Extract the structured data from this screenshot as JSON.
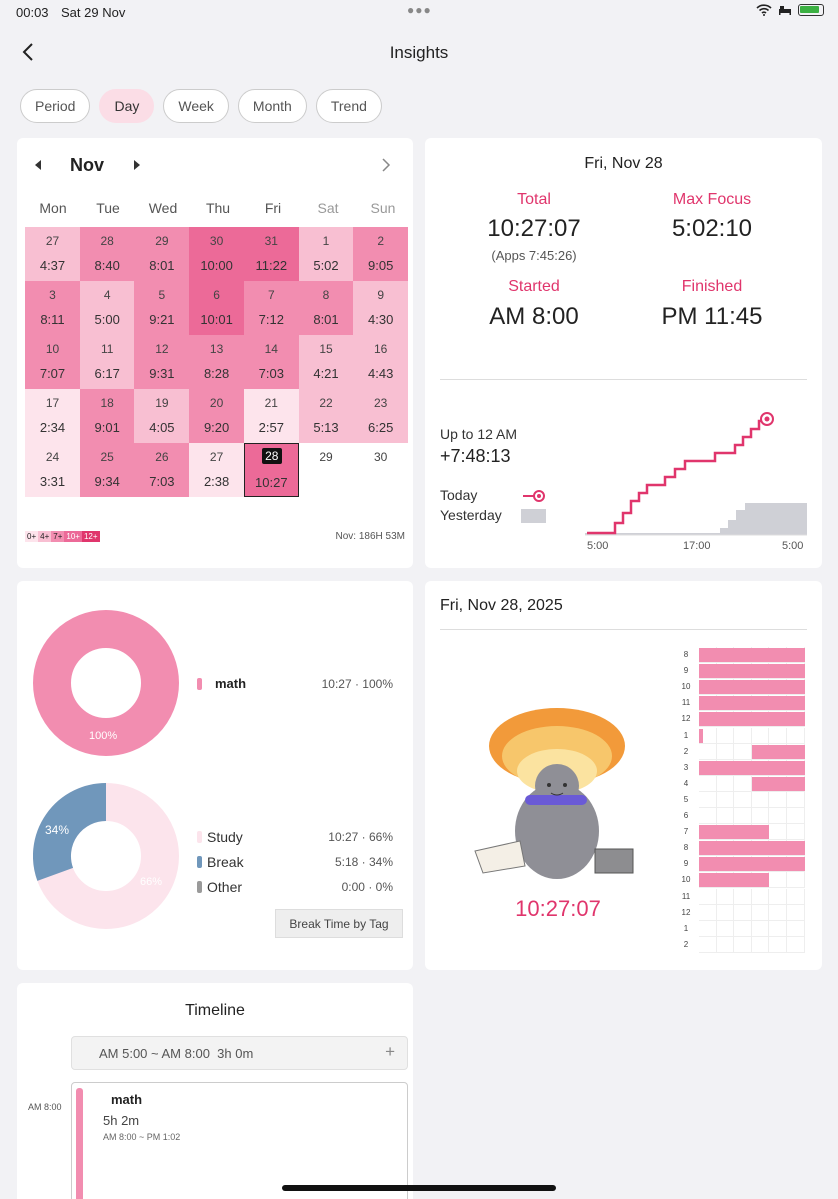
{
  "status": {
    "time": "00:03",
    "date": "Sat 29 Nov"
  },
  "header": {
    "title": "Insights"
  },
  "tabs": [
    {
      "label": "Period",
      "active": false
    },
    {
      "label": "Day",
      "active": true
    },
    {
      "label": "Week",
      "active": false
    },
    {
      "label": "Month",
      "active": false
    },
    {
      "label": "Trend",
      "active": false
    }
  ],
  "calendar": {
    "month": "Nov",
    "weekdays": [
      "Mon",
      "Tue",
      "Wed",
      "Thu",
      "Fri",
      "Sat",
      "Sun"
    ],
    "rows": [
      [
        {
          "d": "27",
          "v": "4:37",
          "l": 1
        },
        {
          "d": "28",
          "v": "8:40",
          "l": 2
        },
        {
          "d": "29",
          "v": "8:01",
          "l": 2
        },
        {
          "d": "30",
          "v": "10:00",
          "l": 3
        },
        {
          "d": "31",
          "v": "11:22",
          "l": 3
        },
        {
          "d": "1",
          "v": "5:02",
          "l": 1
        },
        {
          "d": "2",
          "v": "9:05",
          "l": 2
        }
      ],
      [
        {
          "d": "3",
          "v": "8:11",
          "l": 2
        },
        {
          "d": "4",
          "v": "5:00",
          "l": 1
        },
        {
          "d": "5",
          "v": "9:21",
          "l": 2
        },
        {
          "d": "6",
          "v": "10:01",
          "l": 3
        },
        {
          "d": "7",
          "v": "7:12",
          "l": 2
        },
        {
          "d": "8",
          "v": "8:01",
          "l": 2
        },
        {
          "d": "9",
          "v": "4:30",
          "l": 1
        }
      ],
      [
        {
          "d": "10",
          "v": "7:07",
          "l": 2
        },
        {
          "d": "11",
          "v": "6:17",
          "l": 1
        },
        {
          "d": "12",
          "v": "9:31",
          "l": 2
        },
        {
          "d": "13",
          "v": "8:28",
          "l": 2
        },
        {
          "d": "14",
          "v": "7:03",
          "l": 2
        },
        {
          "d": "15",
          "v": "4:21",
          "l": 1
        },
        {
          "d": "16",
          "v": "4:43",
          "l": 1
        }
      ],
      [
        {
          "d": "17",
          "v": "2:34",
          "l": 0
        },
        {
          "d": "18",
          "v": "9:01",
          "l": 2
        },
        {
          "d": "19",
          "v": "4:05",
          "l": 1
        },
        {
          "d": "20",
          "v": "9:20",
          "l": 2
        },
        {
          "d": "21",
          "v": "2:57",
          "l": 0
        },
        {
          "d": "22",
          "v": "5:13",
          "l": 1
        },
        {
          "d": "23",
          "v": "6:25",
          "l": 1
        }
      ],
      [
        {
          "d": "24",
          "v": "3:31",
          "l": 0
        },
        {
          "d": "25",
          "v": "9:34",
          "l": 2
        },
        {
          "d": "26",
          "v": "7:03",
          "l": 2
        },
        {
          "d": "27",
          "v": "2:38",
          "l": 0
        },
        {
          "d": "28",
          "v": "10:27",
          "l": 3,
          "sel": true
        },
        {
          "d": "29",
          "v": "",
          "l": -1
        },
        {
          "d": "30",
          "v": "",
          "l": -1
        }
      ]
    ],
    "legend": [
      "0+",
      "4+",
      "7+",
      "10+",
      "12+"
    ],
    "summary": "Nov: 186H 53M"
  },
  "colors": {
    "l0": "#fde4ec",
    "l1": "#f8bfd2",
    "l2": "#f28db0",
    "l3": "#ec6a98",
    "accent": "#e0356c",
    "blue": "#7097bb",
    "gray": "#cfd0d6"
  },
  "stats": {
    "date": "Fri, Nov 28",
    "total_label": "Total",
    "total": "10:27:07",
    "apps": "(Apps 7:45:26)",
    "maxfocus_label": "Max Focus",
    "maxfocus": "5:02:10",
    "started_label": "Started",
    "started": "AM 8:00",
    "finished_label": "Finished",
    "finished": "PM 11:45",
    "upto_label": "Up to 12 AM",
    "upto": "+7:48:13",
    "today": "Today",
    "yesterday": "Yesterday",
    "xticks": [
      "5:00",
      "17:00",
      "5:00"
    ]
  },
  "tags": {
    "subject": "math",
    "subject_value": "10:27 · 100%",
    "pie1_label": "100%",
    "pie2_labels": [
      "34%",
      "66%"
    ],
    "legend": [
      {
        "name": "Study",
        "value": "10:27 · 66%"
      },
      {
        "name": "Break",
        "value": "5:18 · 34%"
      },
      {
        "name": "Other",
        "value": "0:00 · 0%"
      }
    ],
    "button": "Break Time by Tag"
  },
  "daychart": {
    "date": "Fri, Nov 28, 2025",
    "total": "10:27:07",
    "hours": [
      "8",
      "9",
      "10",
      "11",
      "12",
      "1",
      "2",
      "3",
      "4",
      "5",
      "6",
      "7",
      "8",
      "9",
      "10",
      "11",
      "12",
      "1",
      "2"
    ]
  },
  "timeline": {
    "title": "Timeline",
    "gap": "AM 5:00 ~ AM 8:00  3h 0m",
    "time_mark": "AM 8:00",
    "item_name": "math",
    "item_duration": "5h 2m",
    "item_range": "AM 8:00 ~ PM 1:02"
  }
}
